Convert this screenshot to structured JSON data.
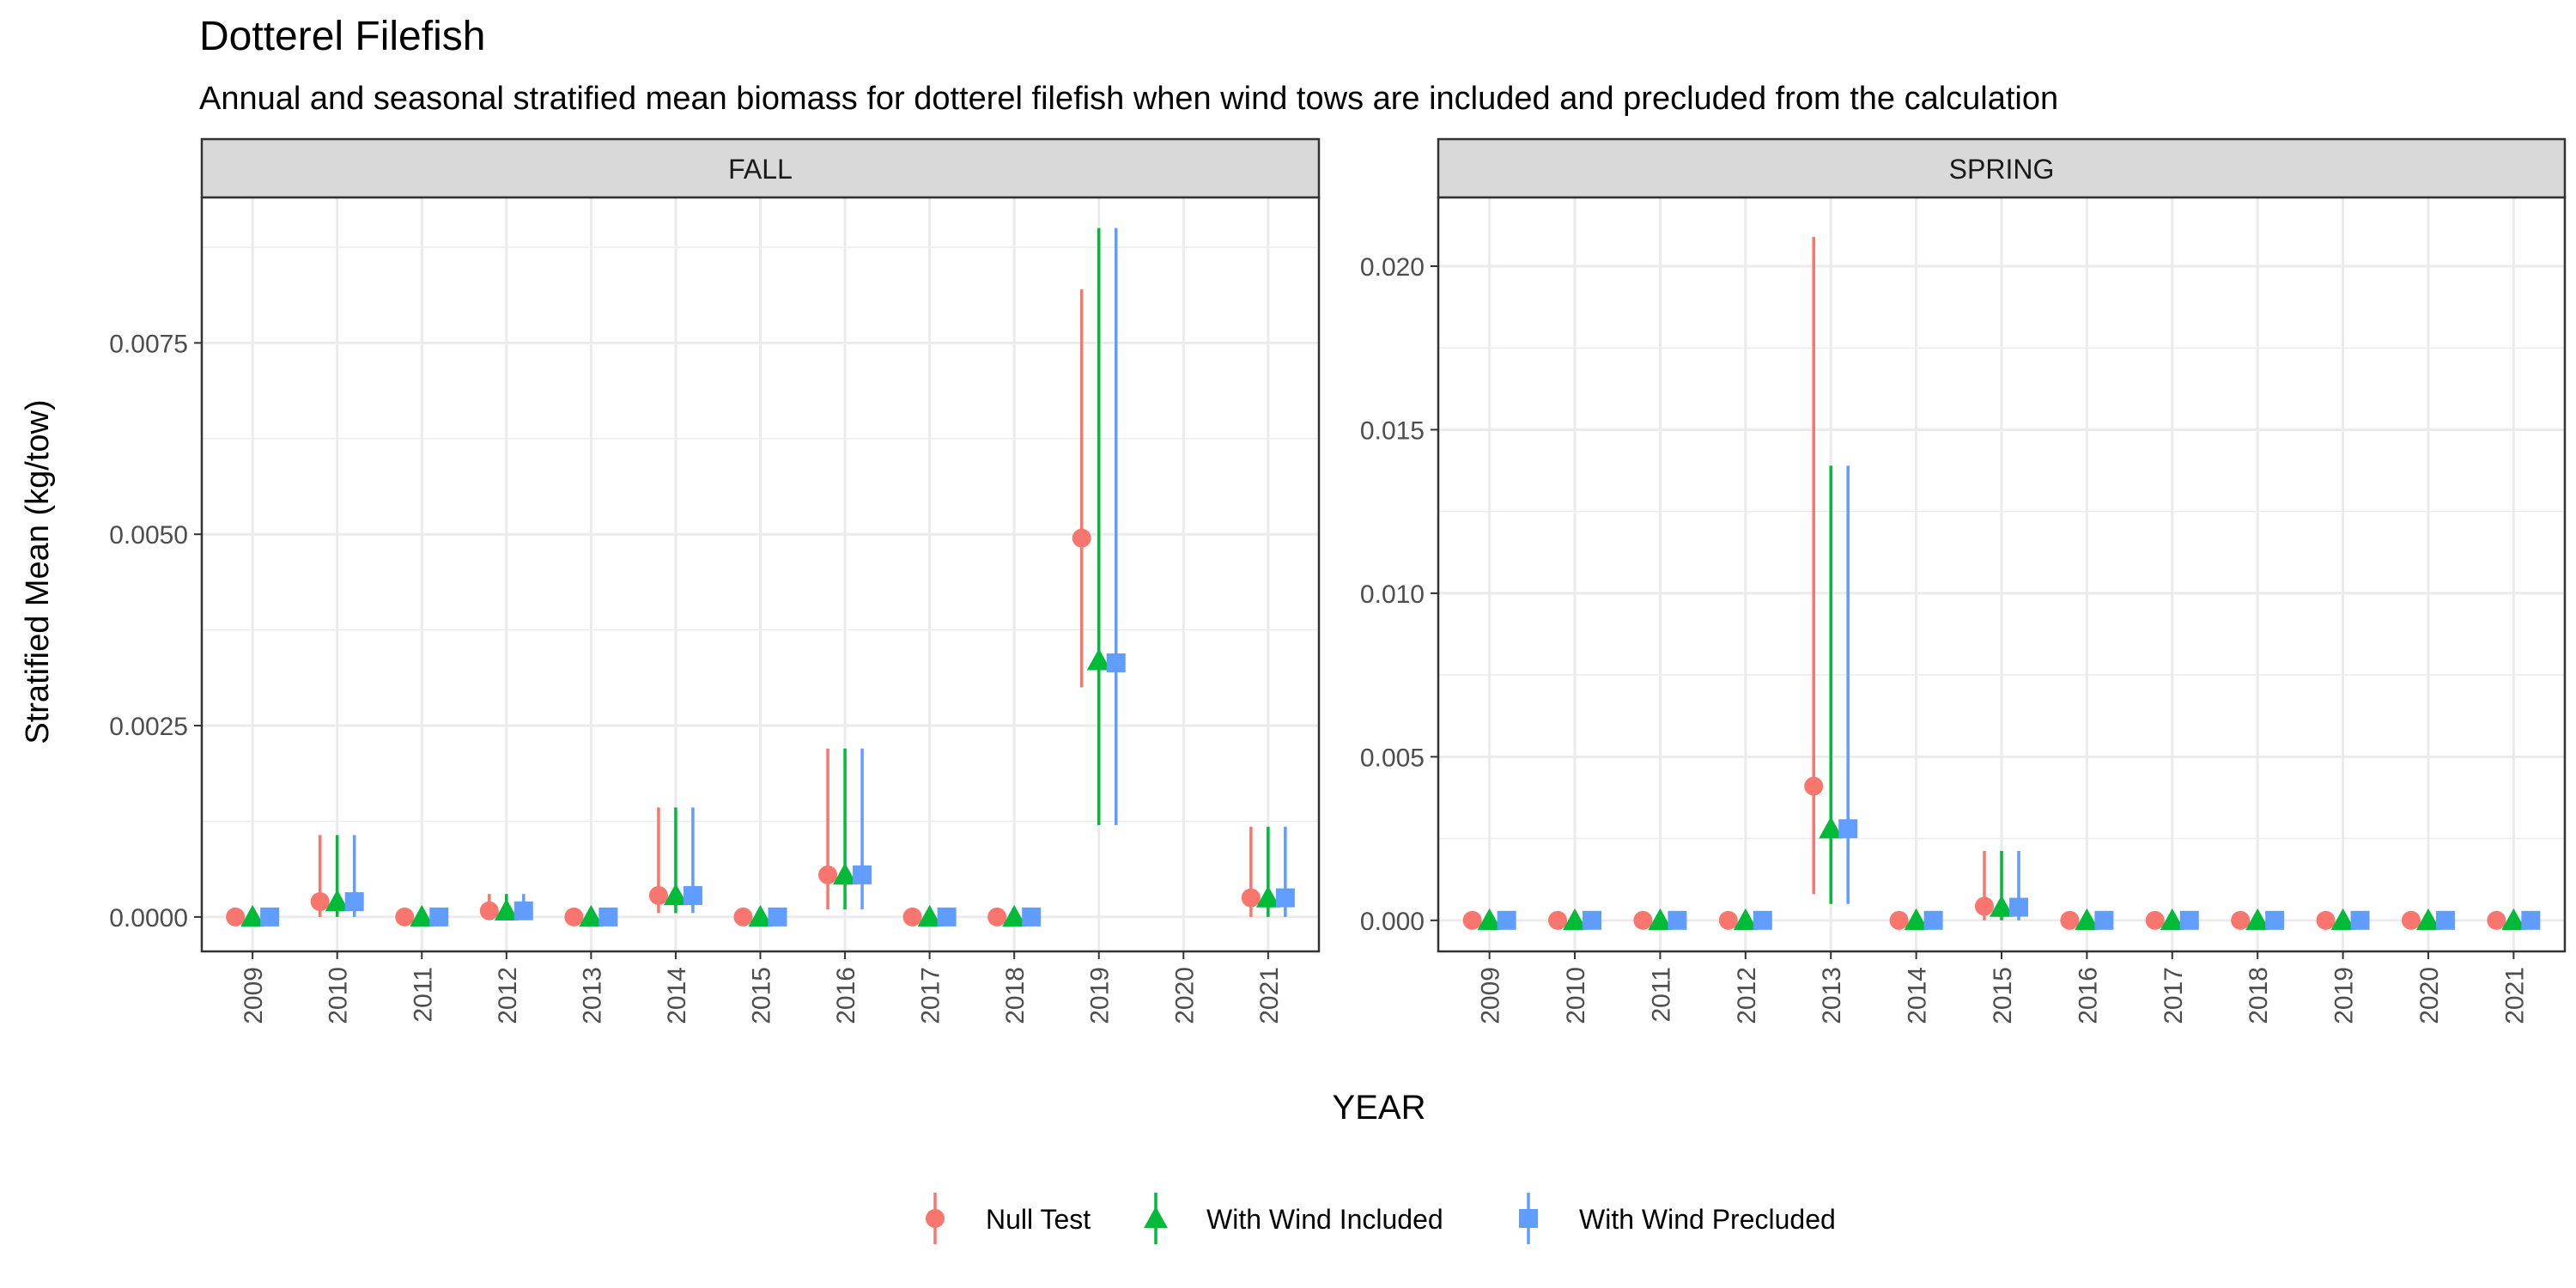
{
  "title": "Dotterel Filefish",
  "subtitle": "Annual and seasonal stratified mean biomass for dotterel filefish when wind tows are included and precluded from the calculation",
  "ylabel": "Stratified Mean (kg/tow)",
  "xlabel": "YEAR",
  "colors": {
    "null_test": "#F8766D",
    "with_wind_included": "#00BA38",
    "with_wind_precluded": "#619CFF",
    "strip_bg": "#D9D9D9",
    "grid": "#EBEBEB",
    "panel_border": "#333333"
  },
  "legend": {
    "placement": "bottom",
    "items": [
      {
        "key": "null_test",
        "label": "Null Test",
        "shape": "circle"
      },
      {
        "key": "with_wind_included",
        "label": "With Wind Included",
        "shape": "triangle"
      },
      {
        "key": "with_wind_precluded",
        "label": "With Wind Precluded",
        "shape": "square"
      }
    ]
  },
  "chart_data": [
    {
      "type": "scatter",
      "panel": "FALL",
      "categories": [
        "2009",
        "2010",
        "2011",
        "2012",
        "2013",
        "2014",
        "2015",
        "2016",
        "2017",
        "2018",
        "2019",
        "2020",
        "2021"
      ],
      "yticks": [
        0,
        0.0025,
        0.005,
        0.0075
      ],
      "ytick_labels": [
        "0.0000",
        "0.0025",
        "0.0050",
        "0.0075"
      ],
      "ylim": [
        -0.00045,
        0.0094
      ],
      "grid": true,
      "series": [
        {
          "name": "Null Test",
          "key": "null_test",
          "values": [
            0,
            0.0002,
            0,
            8e-05,
            0,
            0.00028,
            0,
            0.00055,
            0,
            0,
            0.00495,
            null,
            0.00025
          ],
          "lower": [
            0,
            0,
            0,
            0,
            0,
            5e-05,
            0,
            0.0001,
            0,
            0,
            0.003,
            null,
            0
          ],
          "upper": [
            0,
            0.00107,
            0,
            0.0003,
            0,
            0.00143,
            0,
            0.0022,
            0,
            0,
            0.0082,
            null,
            0.00118
          ]
        },
        {
          "name": "With Wind Included",
          "key": "with_wind_included",
          "values": [
            0,
            0.0002,
            0,
            8e-05,
            0,
            0.00028,
            0,
            0.00055,
            0,
            0,
            0.00335,
            null,
            0.00025
          ],
          "lower": [
            0,
            0,
            0,
            0,
            0,
            5e-05,
            0,
            0.0001,
            0,
            0,
            0.0012,
            null,
            0
          ],
          "upper": [
            0,
            0.00107,
            0,
            0.0003,
            0,
            0.00143,
            0,
            0.0022,
            0,
            0,
            0.009,
            null,
            0.00118
          ]
        },
        {
          "name": "With Wind Precluded",
          "key": "with_wind_precluded",
          "values": [
            0,
            0.0002,
            0,
            8e-05,
            0,
            0.00028,
            0,
            0.00055,
            0,
            0,
            0.00332,
            null,
            0.00025
          ],
          "lower": [
            0,
            0,
            0,
            0,
            0,
            5e-05,
            0,
            0.0001,
            0,
            0,
            0.0012,
            null,
            0
          ],
          "upper": [
            0,
            0.00107,
            0,
            0.0003,
            0,
            0.00143,
            0,
            0.0022,
            0,
            0,
            0.009,
            null,
            0.00118
          ]
        }
      ]
    },
    {
      "type": "scatter",
      "panel": "SPRING",
      "categories": [
        "2009",
        "2010",
        "2011",
        "2012",
        "2013",
        "2014",
        "2015",
        "2016",
        "2017",
        "2018",
        "2019",
        "2020",
        "2021"
      ],
      "yticks": [
        0,
        0.005,
        0.01,
        0.015,
        0.02
      ],
      "ytick_labels": [
        "0.000",
        "0.005",
        "0.010",
        "0.015",
        "0.020"
      ],
      "ylim": [
        -0.00095,
        0.0221
      ],
      "grid": true,
      "series": [
        {
          "name": "Null Test",
          "key": "null_test",
          "values": [
            0,
            0,
            0,
            0,
            0.0041,
            0,
            0.00043,
            0,
            0,
            0,
            0,
            0,
            0
          ],
          "lower": [
            0,
            0,
            0,
            0,
            0.0008,
            0,
            0,
            0,
            0,
            0,
            0,
            0,
            0
          ],
          "upper": [
            0,
            0,
            0,
            0,
            0.0209,
            0,
            0.00212,
            0,
            0,
            0,
            0,
            0,
            0
          ]
        },
        {
          "name": "With Wind Included",
          "key": "with_wind_included",
          "values": [
            0,
            0,
            0,
            0,
            0.0028,
            0,
            0.0004,
            0,
            0,
            0,
            0,
            0,
            0
          ],
          "lower": [
            0,
            0,
            0,
            0,
            0.0005,
            0,
            0,
            0,
            0,
            0,
            0,
            0,
            0
          ],
          "upper": [
            0,
            0,
            0,
            0,
            0.0139,
            0,
            0.00212,
            0,
            0,
            0,
            0,
            0,
            0
          ]
        },
        {
          "name": "With Wind Precluded",
          "key": "with_wind_precluded",
          "values": [
            0,
            0,
            0,
            0,
            0.0028,
            0,
            0.0004,
            0,
            0,
            0,
            0,
            0,
            0
          ],
          "lower": [
            0,
            0,
            0,
            0,
            0.0005,
            0,
            0,
            0,
            0,
            0,
            0,
            0,
            0
          ],
          "upper": [
            0,
            0,
            0,
            0,
            0.0139,
            0,
            0.00212,
            0,
            0,
            0,
            0,
            0,
            0
          ]
        }
      ]
    }
  ]
}
